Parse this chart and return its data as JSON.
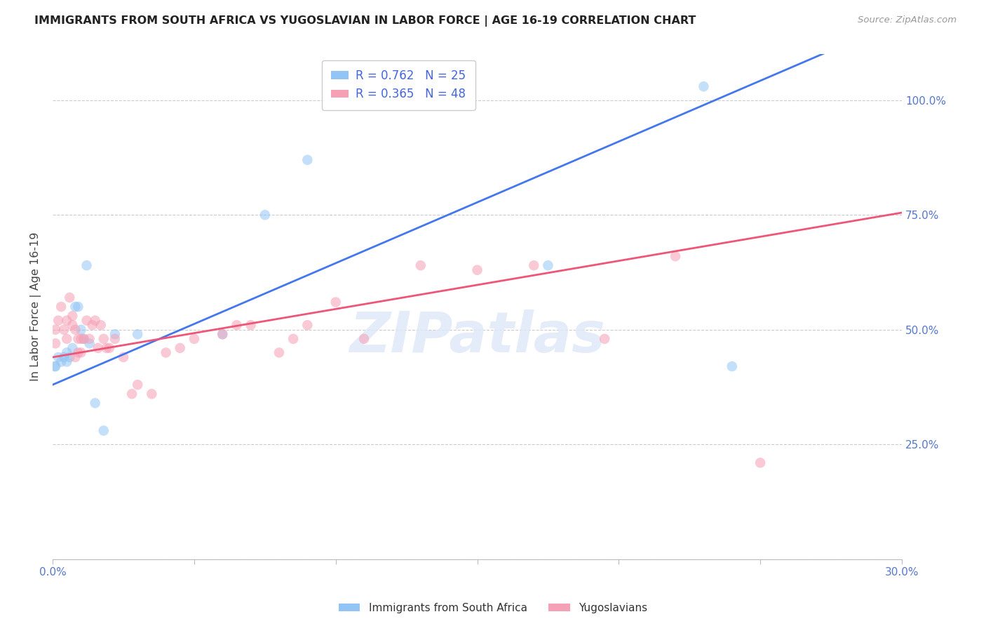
{
  "title": "IMMIGRANTS FROM SOUTH AFRICA VS YUGOSLAVIAN IN LABOR FORCE | AGE 16-19 CORRELATION CHART",
  "source": "Source: ZipAtlas.com",
  "ylabel": "In Labor Force | Age 16-19",
  "x_min": 0.0,
  "x_max": 0.3,
  "y_min": 0.0,
  "y_max": 1.1,
  "x_ticks": [
    0.0,
    0.05,
    0.1,
    0.15,
    0.2,
    0.25,
    0.3
  ],
  "y_ticks": [
    0.0,
    0.25,
    0.5,
    0.75,
    1.0
  ],
  "y_tick_labels_right": [
    "",
    "25.0%",
    "50.0%",
    "75.0%",
    "100.0%"
  ],
  "south_africa_R": 0.762,
  "south_africa_N": 25,
  "yugoslavian_R": 0.365,
  "yugoslavian_N": 48,
  "south_africa_color": "#92C5F5",
  "yugoslavian_color": "#F5A0B5",
  "trend_blue": "#4477EE",
  "trend_pink": "#EE5577",
  "south_africa_x": [
    0.0008,
    0.001,
    0.002,
    0.003,
    0.004,
    0.005,
    0.005,
    0.006,
    0.007,
    0.008,
    0.009,
    0.01,
    0.011,
    0.012,
    0.013,
    0.015,
    0.018,
    0.022,
    0.03,
    0.06,
    0.075,
    0.09,
    0.175,
    0.23,
    0.24
  ],
  "south_africa_y": [
    0.42,
    0.42,
    0.44,
    0.43,
    0.44,
    0.45,
    0.43,
    0.44,
    0.46,
    0.55,
    0.55,
    0.5,
    0.48,
    0.64,
    0.47,
    0.34,
    0.28,
    0.49,
    0.49,
    0.49,
    0.75,
    0.87,
    0.64,
    1.03,
    0.42
  ],
  "yugoslavian_x": [
    0.001,
    0.001,
    0.002,
    0.003,
    0.004,
    0.005,
    0.005,
    0.006,
    0.007,
    0.007,
    0.008,
    0.008,
    0.009,
    0.009,
    0.01,
    0.01,
    0.011,
    0.012,
    0.013,
    0.014,
    0.015,
    0.016,
    0.017,
    0.018,
    0.019,
    0.02,
    0.022,
    0.025,
    0.028,
    0.03,
    0.035,
    0.04,
    0.045,
    0.05,
    0.06,
    0.065,
    0.07,
    0.08,
    0.085,
    0.09,
    0.1,
    0.11,
    0.13,
    0.15,
    0.17,
    0.195,
    0.22,
    0.25
  ],
  "yugoslavian_y": [
    0.47,
    0.5,
    0.52,
    0.55,
    0.5,
    0.52,
    0.48,
    0.57,
    0.53,
    0.51,
    0.5,
    0.44,
    0.45,
    0.48,
    0.45,
    0.48,
    0.48,
    0.52,
    0.48,
    0.51,
    0.52,
    0.46,
    0.51,
    0.48,
    0.46,
    0.46,
    0.48,
    0.44,
    0.36,
    0.38,
    0.36,
    0.45,
    0.46,
    0.48,
    0.49,
    0.51,
    0.51,
    0.45,
    0.48,
    0.51,
    0.56,
    0.48,
    0.64,
    0.63,
    0.64,
    0.48,
    0.66,
    0.21
  ],
  "watermark_text": "ZIPatlas",
  "marker_size": 110,
  "marker_alpha": 0.55,
  "background_color": "#FFFFFF",
  "grid_color": "#CCCCCC",
  "legend_label_sa": "Immigrants from South Africa",
  "legend_label_yu": "Yugoslavians",
  "trend_blue_intercept": 0.38,
  "trend_blue_slope": 2.65,
  "trend_pink_intercept": 0.44,
  "trend_pink_slope": 1.05
}
